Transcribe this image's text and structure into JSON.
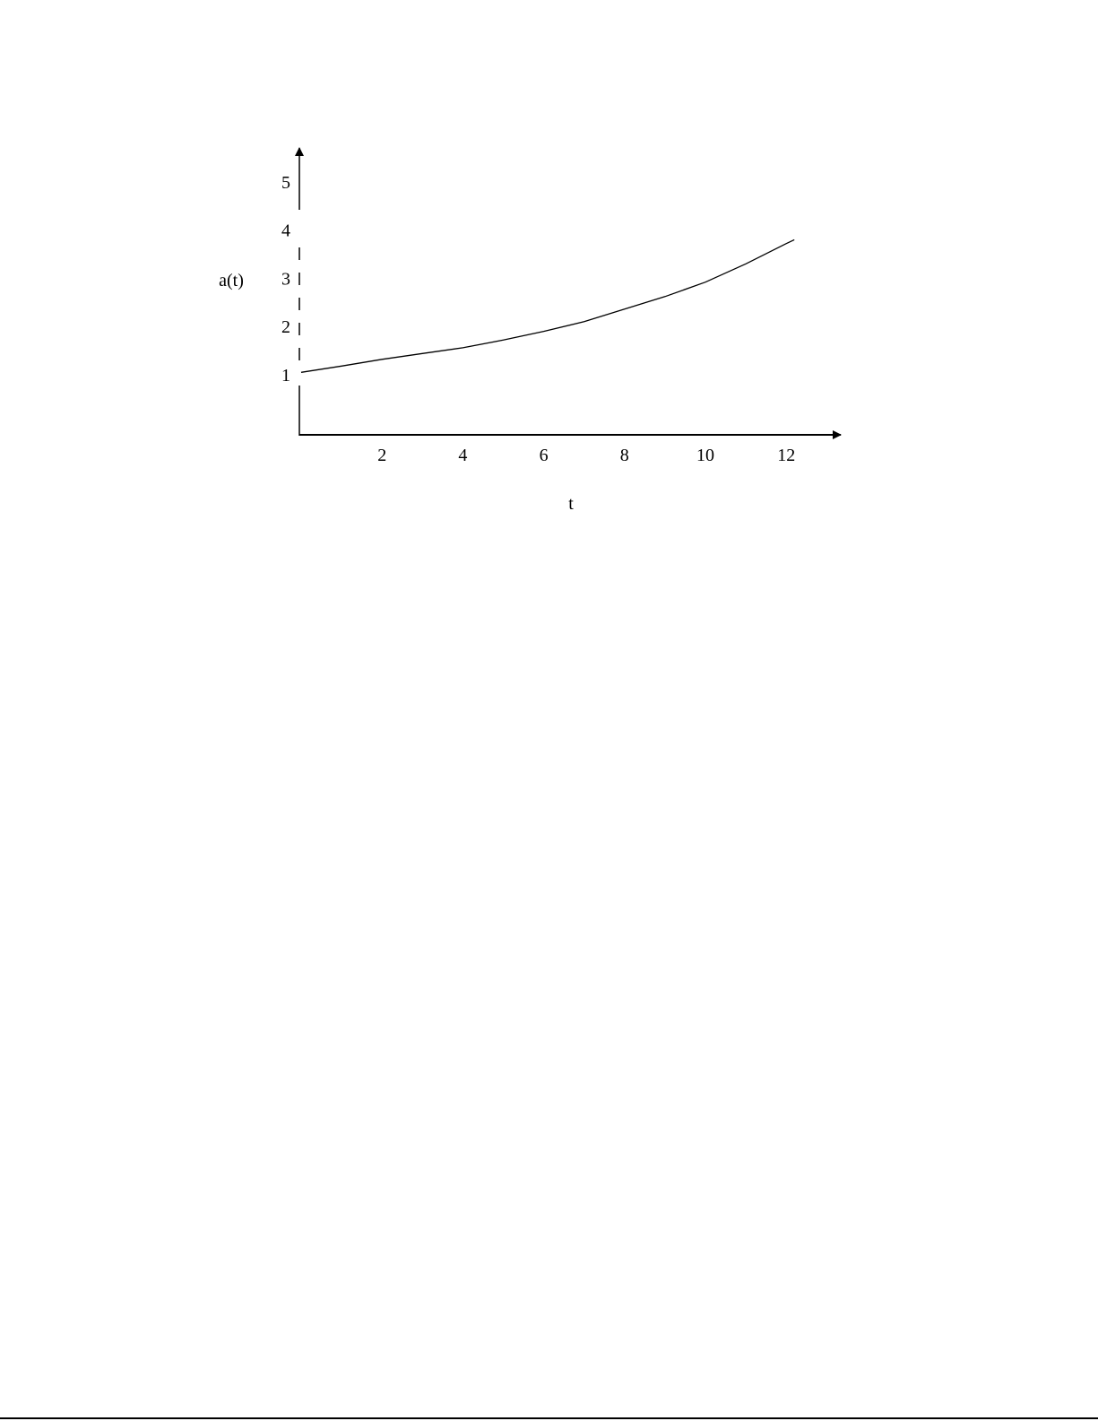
{
  "chart_data": {
    "type": "line",
    "title": "",
    "xlabel": "t",
    "ylabel": "a(t)",
    "x_ticks": [
      "2",
      "4",
      "6",
      "8",
      "10",
      "12"
    ],
    "y_ticks": [
      "1",
      "2",
      "3",
      "4",
      "5"
    ],
    "xlim": [
      0,
      13.5
    ],
    "ylim": [
      0,
      5.7
    ],
    "grid": false,
    "series": [
      {
        "x": [
          0,
          1,
          2,
          3,
          4,
          5,
          6,
          7,
          8,
          9,
          10,
          11,
          12,
          12.2
        ],
        "y": [
          1.05,
          1.18,
          1.32,
          1.44,
          1.56,
          1.72,
          1.9,
          2.1,
          2.36,
          2.62,
          2.92,
          3.3,
          3.72,
          3.8
        ]
      }
    ],
    "line_color": "#000000"
  }
}
